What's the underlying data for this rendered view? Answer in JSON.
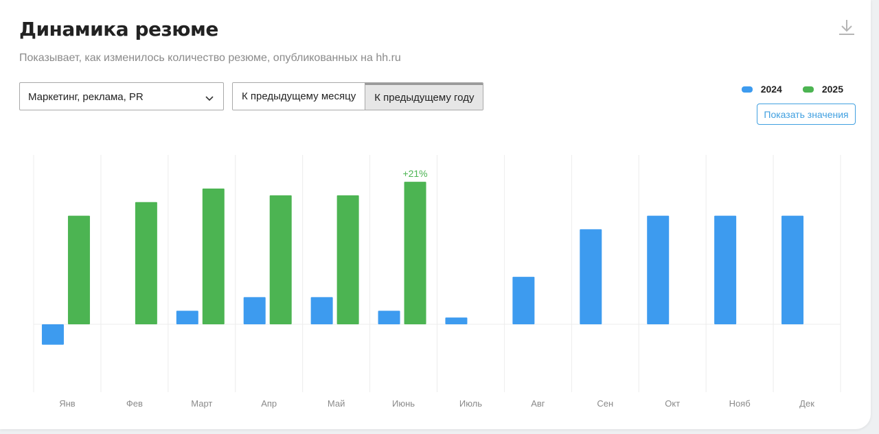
{
  "header": {
    "title": "Динамика резюме",
    "subtitle": "Показывает, как изменилось количество резюме, опубликованных на hh.ru"
  },
  "filter": {
    "selected": "Маркетинг, реклама, PR"
  },
  "toggle": {
    "options": [
      "К предыдущему месяцу",
      "К предыдущему году"
    ],
    "active_index": 1
  },
  "actions": {
    "show_values_label": "Показать значения",
    "download_icon": "download-icon"
  },
  "colors": {
    "2024": "#3d9bef",
    "2025": "#4cb452"
  },
  "chart_data": {
    "type": "bar",
    "categories": [
      "Янв",
      "Фев",
      "Март",
      "Апр",
      "Май",
      "Июнь",
      "Июль",
      "Авг",
      "Сен",
      "Окт",
      "Нояб",
      "Дек"
    ],
    "series": [
      {
        "name": "2024",
        "values": [
          -3,
          null,
          2,
          4,
          4,
          2,
          1,
          7,
          14,
          16,
          16,
          16
        ]
      },
      {
        "name": "2025",
        "values": [
          16,
          18,
          20,
          19,
          19,
          21,
          null,
          null,
          null,
          null,
          null,
          null
        ]
      }
    ],
    "annotations": [
      {
        "category": "Июнь",
        "series": "2025",
        "text": "+21%"
      }
    ],
    "ylim": [
      -10,
      25
    ],
    "grid": "vertical",
    "legend": "top-right"
  }
}
